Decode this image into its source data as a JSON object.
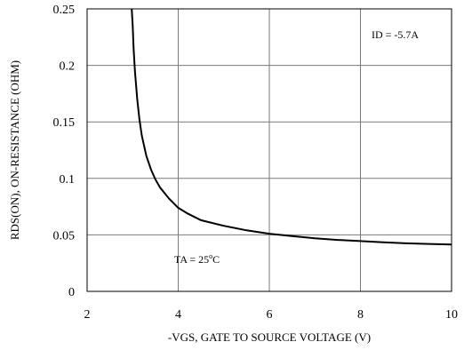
{
  "chart_data": {
    "type": "line",
    "title": "",
    "xlabel": "-VGS, GATE TO SOURCE VOLTAGE (V)",
    "ylabel": "RDS(ON), ON-RESISTANCE (OHM)",
    "xlim": [
      2,
      10
    ],
    "ylim": [
      0,
      0.25
    ],
    "x_ticks": [
      "2",
      "4",
      "6",
      "8",
      "10"
    ],
    "y_ticks": [
      "0",
      "0.05",
      "0.1",
      "0.15",
      "0.2",
      "0.25"
    ],
    "grid": true,
    "series": [
      {
        "x": [
          2.98,
          3.0,
          3.02,
          3.05,
          3.1,
          3.15,
          3.2,
          3.3,
          3.4,
          3.5,
          3.6,
          3.8,
          4.0,
          4.2,
          4.5,
          5.0,
          5.5,
          6.0,
          6.5,
          7.0,
          7.5,
          8.0,
          8.5,
          9.0,
          9.5,
          10.0
        ],
        "values": [
          0.25,
          0.235,
          0.215,
          0.195,
          0.17,
          0.152,
          0.138,
          0.12,
          0.108,
          0.099,
          0.092,
          0.082,
          0.074,
          0.069,
          0.063,
          0.058,
          0.054,
          0.051,
          0.049,
          0.047,
          0.0455,
          0.0445,
          0.0435,
          0.0425,
          0.042,
          0.0415
        ]
      }
    ],
    "annotations": {
      "id_main": "ID = -5.7A",
      "ta_main": "TA = 25",
      "ta_sup": "o",
      "ta_unit": "C"
    }
  }
}
